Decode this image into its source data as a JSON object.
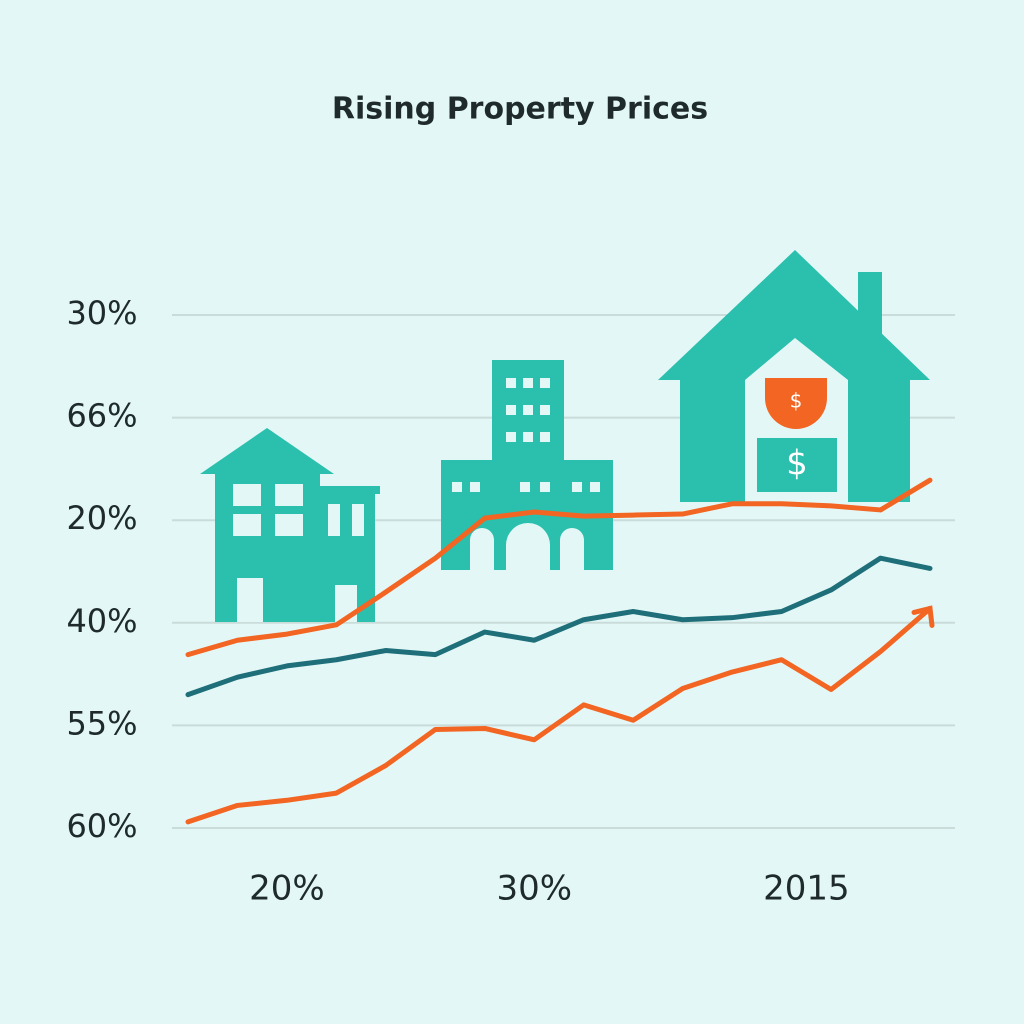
{
  "chart_data": {
    "type": "line",
    "title": "Rising Property Prices",
    "x": [
      0,
      2,
      4,
      6,
      8,
      10,
      12,
      14,
      16,
      18,
      20,
      22,
      24,
      26,
      28,
      30
    ],
    "xlim": [
      0,
      30
    ],
    "xticks": [
      {
        "value": 4,
        "label": "20%"
      },
      {
        "value": 14,
        "label": "30%"
      },
      {
        "value": 25,
        "label": "2015"
      }
    ],
    "ylim": [
      0,
      5
    ],
    "yticks": [
      {
        "value": 0,
        "label": "60%"
      },
      {
        "value": 1,
        "label": "55%"
      },
      {
        "value": 2,
        "label": "40%"
      },
      {
        "value": 3,
        "label": "20%"
      },
      {
        "value": 4,
        "label": "66%"
      },
      {
        "value": 5,
        "label": "30%"
      }
    ],
    "grid": true,
    "series": [
      {
        "color": "#f26522",
        "values": [
          1.69,
          1.83,
          1.89,
          1.98,
          2.3,
          2.63,
          3.02,
          3.08,
          3.04,
          3.05,
          3.06,
          3.16,
          3.16,
          3.14,
          3.1,
          3.39
        ]
      },
      {
        "color": "#1f6f7a",
        "values": [
          1.3,
          1.47,
          1.58,
          1.64,
          1.73,
          1.69,
          1.91,
          1.83,
          2.03,
          2.11,
          2.03,
          2.05,
          2.11,
          2.32,
          2.63,
          2.53
        ]
      },
      {
        "color": "#f26522",
        "values": [
          0.06,
          0.22,
          0.27,
          0.34,
          0.61,
          0.96,
          0.97,
          0.86,
          1.2,
          1.05,
          1.36,
          1.52,
          1.64,
          1.35,
          1.72,
          2.14
        ]
      }
    ]
  }
}
